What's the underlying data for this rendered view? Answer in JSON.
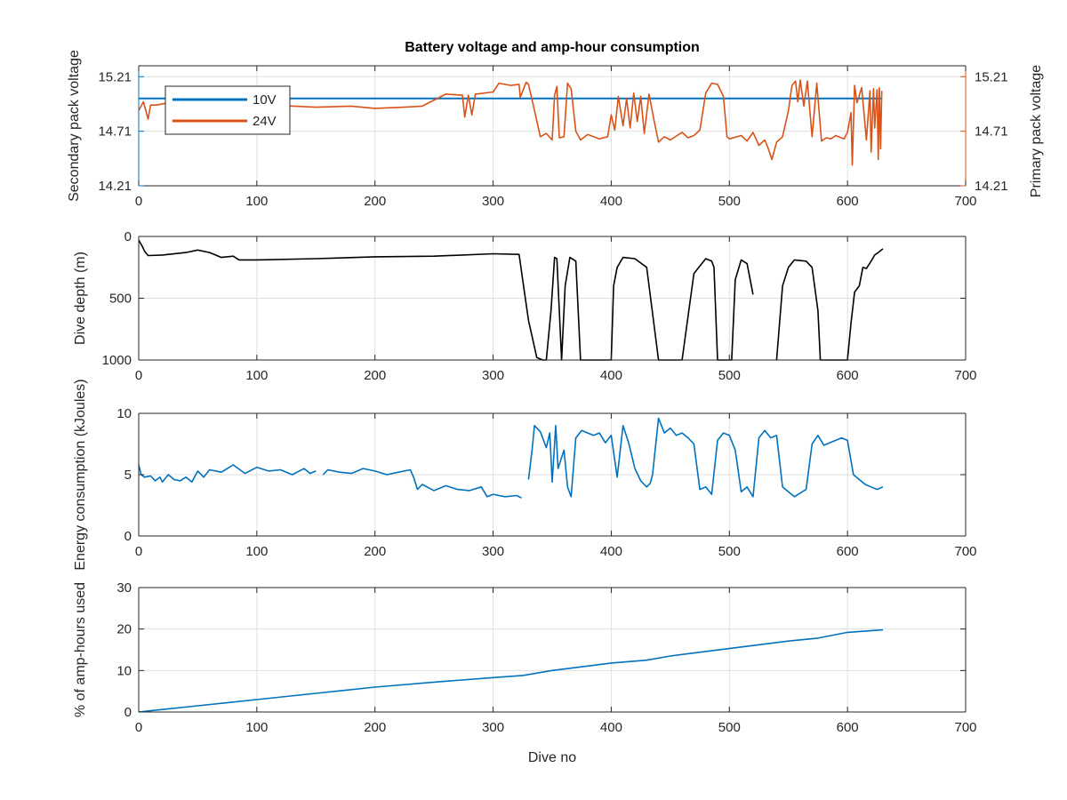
{
  "colors": {
    "blue": "#0072BD",
    "orange": "#D95319",
    "black": "#000000",
    "grid": "#DFDFDF",
    "axis": "#262626"
  },
  "chart_data": [
    {
      "type": "line",
      "title": "Battery voltage and amp-hour consumption",
      "xlim": [
        0,
        700
      ],
      "xticks": [
        0,
        100,
        200,
        300,
        400,
        500,
        600,
        700
      ],
      "ylabel": "Secondary pack voltage",
      "ylabel_right": "Primary pack voltage",
      "ylim": [
        14.21,
        15.31
      ],
      "yticks": [
        14.21,
        14.71,
        15.21
      ],
      "ytick_labels": [
        "14.21",
        "14.71",
        "15.21"
      ],
      "legend": {
        "position": "top-left",
        "entries": [
          "10V",
          "24V"
        ]
      },
      "series": [
        {
          "name": "10V",
          "axis": "left",
          "x": [
            0,
            629
          ],
          "y": [
            15.01,
            15.01
          ]
        },
        {
          "name": "24V",
          "axis": "right",
          "x": [
            0,
            4,
            8,
            10,
            15,
            25,
            35,
            55,
            80,
            110,
            150,
            180,
            200,
            225,
            240,
            260,
            274,
            276,
            279,
            282,
            285,
            300,
            305,
            315,
            322,
            323,
            328,
            330,
            335,
            340,
            345,
            350,
            352,
            354,
            356,
            360,
            363,
            366,
            370,
            374,
            380,
            390,
            397,
            400,
            403,
            406,
            410,
            413,
            416,
            419,
            422,
            425,
            428,
            432,
            436,
            440,
            445,
            450,
            460,
            465,
            470,
            475,
            480,
            485,
            490,
            495,
            498,
            500,
            510,
            515,
            520,
            525,
            530,
            533,
            536,
            540,
            545,
            550,
            553,
            556,
            558,
            560,
            563,
            566,
            570,
            574,
            578,
            582,
            586,
            590,
            597,
            600,
            603,
            604,
            606,
            608,
            612,
            616,
            619,
            620,
            622,
            623,
            625,
            626,
            627,
            628,
            629
          ],
          "y": [
            14.9,
            14.98,
            14.82,
            14.95,
            14.95,
            14.97,
            14.92,
            14.96,
            14.93,
            14.95,
            14.93,
            14.94,
            14.92,
            14.93,
            14.94,
            15.05,
            15.04,
            14.84,
            15.04,
            14.86,
            15.05,
            15.07,
            15.15,
            15.13,
            15.14,
            15.02,
            15.16,
            15.14,
            14.9,
            14.66,
            14.69,
            14.63,
            15.04,
            15.12,
            14.65,
            14.66,
            15.15,
            15.1,
            14.71,
            14.63,
            14.68,
            14.64,
            14.66,
            14.86,
            14.72,
            15.03,
            14.76,
            15.01,
            14.74,
            15.06,
            14.8,
            15.03,
            14.69,
            15.05,
            14.82,
            14.61,
            14.66,
            14.63,
            14.7,
            14.65,
            14.67,
            14.72,
            15.06,
            15.15,
            15.14,
            15.03,
            14.66,
            14.64,
            14.67,
            14.62,
            14.7,
            14.58,
            14.63,
            14.55,
            14.45,
            14.61,
            14.66,
            14.9,
            15.13,
            15.17,
            14.98,
            15.18,
            14.94,
            15.17,
            14.66,
            15.15,
            14.62,
            14.65,
            14.64,
            14.67,
            14.64,
            14.7,
            14.88,
            14.4,
            15.13,
            14.97,
            15.11,
            14.63,
            15.08,
            14.52,
            15.1,
            14.74,
            15.09,
            14.45,
            15.11,
            14.55,
            15.08
          ]
        }
      ]
    },
    {
      "type": "line",
      "xlim": [
        0,
        700
      ],
      "xticks": [
        0,
        100,
        200,
        300,
        400,
        500,
        600,
        700
      ],
      "ylabel": "Dive depth (m)",
      "ylim": [
        0,
        1000
      ],
      "y_reversed": true,
      "yticks": [
        0,
        500,
        1000
      ],
      "ytick_labels": [
        "0",
        "500",
        "1000"
      ],
      "series": [
        {
          "color": "black",
          "segments": [
            {
              "x": [
                0,
                3,
                5,
                8,
                20,
                40,
                50,
                60,
                65,
                70,
                80,
                85,
                100,
                150,
                200,
                250,
                300,
                322,
                325,
                330,
                337,
                342,
                345,
                349,
                352,
                354,
                358,
                361,
                365,
                370,
                374,
                378,
                386,
                390,
                400,
                402,
                405,
                410,
                420,
                430,
                440,
                445,
                450,
                460,
                470,
                480,
                485,
                487,
                490,
                500,
                502,
                505,
                510,
                515,
                520
              ],
              "y": [
                30,
                80,
                120,
                155,
                150,
                130,
                110,
                130,
                150,
                170,
                160,
                190,
                190,
                180,
                165,
                160,
                140,
                145,
                350,
                680,
                980,
                1000,
                1000,
                600,
                170,
                180,
                1000,
                400,
                170,
                200,
                1000,
                1000,
                1000,
                1000,
                1000,
                400,
                250,
                170,
                180,
                250,
                1000,
                1000,
                1000,
                1000,
                300,
                180,
                200,
                250,
                1000,
                1000,
                1000,
                350,
                190,
                220,
                470
              ]
            },
            {
              "x": [
                540,
                545,
                550,
                555,
                565,
                570,
                575,
                577,
                580,
                590,
                600,
                603,
                606,
                610,
                613,
                616,
                620,
                623,
                626,
                630
              ],
              "y": [
                1000,
                400,
                250,
                190,
                200,
                250,
                600,
                1000,
                1000,
                1000,
                1000,
                700,
                450,
                400,
                250,
                260,
                200,
                150,
                130,
                100
              ]
            }
          ]
        }
      ]
    },
    {
      "type": "line",
      "xlim": [
        0,
        700
      ],
      "xticks": [
        0,
        100,
        200,
        300,
        400,
        500,
        600,
        700
      ],
      "ylabel": "Energy consumption (kJoules)",
      "ylim": [
        0,
        10
      ],
      "yticks": [
        0,
        5,
        10
      ],
      "ytick_labels": [
        "0",
        "5",
        "10"
      ],
      "series": [
        {
          "name": "energy",
          "color": "blue",
          "segments": [
            {
              "x": [
                0,
                2,
                5,
                10,
                14,
                18,
                20,
                25,
                30,
                35,
                40,
                45,
                50,
                55,
                60,
                70,
                80,
                90,
                100,
                110,
                120,
                130,
                140,
                145,
                150
              ],
              "y": [
                5.8,
                5.0,
                4.8,
                4.9,
                4.5,
                4.8,
                4.4,
                5.0,
                4.6,
                4.5,
                4.8,
                4.4,
                5.3,
                4.8,
                5.4,
                5.2,
                5.8,
                5.1,
                5.6,
                5.3,
                5.4,
                5.0,
                5.5,
                5.1,
                5.3
              ]
            },
            {
              "x": [
                156,
                160,
                170,
                180,
                190,
                200,
                210,
                220,
                230,
                233,
                236,
                240,
                250,
                260,
                270,
                280,
                290,
                295,
                300,
                310,
                320,
                324
              ],
              "y": [
                5.0,
                5.4,
                5.2,
                5.1,
                5.5,
                5.3,
                5.0,
                5.2,
                5.4,
                4.7,
                3.8,
                4.2,
                3.7,
                4.1,
                3.8,
                3.7,
                4.0,
                3.2,
                3.4,
                3.2,
                3.3,
                3.1
              ]
            },
            {
              "x": [
                330,
                333,
                335,
                340,
                345,
                348,
                350,
                353,
                355,
                360,
                363,
                366,
                370,
                375,
                380,
                385,
                390,
                395,
                400,
                405,
                410,
                415,
                420,
                425,
                430,
                433,
                435,
                440,
                445,
                450,
                455,
                460,
                465,
                470,
                475,
                480,
                485,
                490,
                495,
                500,
                505,
                510,
                515,
                520,
                525,
                530,
                535,
                540,
                545,
                550,
                555,
                560,
                565,
                570,
                575,
                580,
                585,
                590,
                595,
                600,
                605,
                610,
                615,
                620,
                625,
                630
              ],
              "y": [
                4.6,
                7.0,
                9.0,
                8.5,
                7.2,
                8.4,
                4.4,
                9.0,
                5.5,
                7.0,
                4.0,
                3.2,
                8.0,
                8.6,
                8.4,
                8.2,
                8.4,
                7.6,
                8.2,
                4.8,
                9.0,
                7.5,
                5.5,
                4.5,
                4.0,
                4.3,
                5.0,
                9.6,
                8.4,
                8.8,
                8.2,
                8.4,
                8.0,
                7.5,
                3.8,
                4.0,
                3.4,
                7.8,
                8.4,
                8.2,
                7.0,
                3.6,
                4.0,
                3.2,
                8.0,
                8.6,
                8.0,
                8.2,
                4.0,
                3.6,
                3.2,
                3.5,
                3.8,
                7.5,
                8.2,
                7.4,
                7.6,
                7.8,
                8.0,
                7.8,
                5.0,
                4.6,
                4.2,
                4.0,
                3.8,
                4.0
              ]
            }
          ]
        }
      ]
    },
    {
      "type": "line",
      "xlim": [
        0,
        700
      ],
      "xticks": [
        0,
        100,
        200,
        300,
        400,
        500,
        600,
        700
      ],
      "xlabel": "Dive no",
      "ylabel": "% of amp-hours used",
      "ylim": [
        0,
        30
      ],
      "yticks": [
        0,
        10,
        20,
        30
      ],
      "ytick_labels": [
        "0",
        "10",
        "20",
        "30"
      ],
      "series": [
        {
          "name": "amp-hours",
          "color": "blue",
          "x": [
            0,
            10,
            50,
            100,
            150,
            200,
            250,
            300,
            325,
            350,
            400,
            430,
            450,
            500,
            550,
            575,
            600,
            630
          ],
          "y": [
            0,
            0.3,
            1.5,
            3.0,
            4.5,
            6.0,
            7.2,
            8.3,
            8.8,
            10.0,
            11.8,
            12.5,
            13.5,
            15.3,
            17.1,
            17.8,
            19.2,
            19.8
          ]
        }
      ]
    }
  ]
}
